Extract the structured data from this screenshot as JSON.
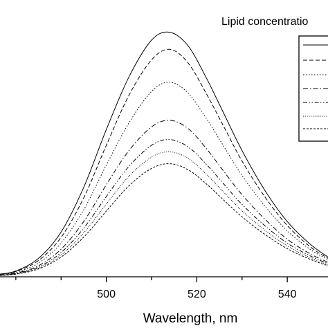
{
  "chart_data": {
    "type": "line",
    "xlabel": "Wavelength, nm",
    "ylabel": "",
    "xlim": [
      476.5,
      549
    ],
    "ylim": [
      0,
      1
    ],
    "x_ticks": [
      500,
      520,
      540
    ],
    "legend": {
      "title": "Lipid concentratio",
      "placement": "top-right",
      "entries": [
        "",
        "",
        "",
        "",
        "",
        "",
        ""
      ]
    },
    "grid": false,
    "series": [
      {
        "style": "solid",
        "x": [
          476.5,
          480,
          485,
          490,
          495,
          500,
          505,
          510,
          514,
          518,
          522,
          526,
          530,
          535,
          540,
          545,
          549
        ],
        "y": [
          0.01,
          0.022,
          0.07,
          0.17,
          0.34,
          0.56,
          0.76,
          0.9,
          0.93,
          0.88,
          0.76,
          0.62,
          0.48,
          0.33,
          0.21,
          0.125,
          0.075
        ]
      },
      {
        "style": "dashed",
        "x": [
          476.5,
          480,
          485,
          490,
          495,
          500,
          505,
          510,
          514,
          518,
          522,
          526,
          530,
          535,
          540,
          545,
          549
        ],
        "y": [
          0.01,
          0.02,
          0.062,
          0.15,
          0.3,
          0.5,
          0.69,
          0.825,
          0.865,
          0.815,
          0.7,
          0.57,
          0.44,
          0.305,
          0.195,
          0.115,
          0.07
        ]
      },
      {
        "style": "dotted",
        "x": [
          476.5,
          480,
          485,
          490,
          495,
          500,
          505,
          510,
          514,
          518,
          522,
          526,
          530,
          535,
          540,
          545,
          549
        ],
        "y": [
          0.008,
          0.017,
          0.052,
          0.128,
          0.255,
          0.425,
          0.585,
          0.705,
          0.74,
          0.7,
          0.605,
          0.495,
          0.385,
          0.27,
          0.175,
          0.105,
          0.065
        ]
      },
      {
        "style": "dashdot",
        "x": [
          476.5,
          480,
          485,
          490,
          495,
          500,
          505,
          510,
          514,
          518,
          522,
          526,
          530,
          535,
          540,
          545,
          549
        ],
        "y": [
          0.007,
          0.014,
          0.042,
          0.105,
          0.21,
          0.35,
          0.48,
          0.57,
          0.595,
          0.565,
          0.49,
          0.4,
          0.312,
          0.22,
          0.143,
          0.088,
          0.055
        ]
      },
      {
        "style": "dashdotdot",
        "x": [
          476.5,
          480,
          485,
          490,
          495,
          500,
          505,
          510,
          514,
          518,
          522,
          526,
          530,
          535,
          540,
          545,
          549
        ],
        "y": [
          0.006,
          0.012,
          0.037,
          0.092,
          0.185,
          0.305,
          0.42,
          0.5,
          0.522,
          0.495,
          0.43,
          0.352,
          0.275,
          0.195,
          0.128,
          0.08,
          0.05
        ]
      },
      {
        "style": "shortdot",
        "x": [
          476.5,
          480,
          485,
          490,
          495,
          500,
          505,
          510,
          514,
          518,
          522,
          526,
          530,
          535,
          540,
          545,
          549
        ],
        "y": [
          0.006,
          0.011,
          0.033,
          0.083,
          0.167,
          0.277,
          0.382,
          0.455,
          0.475,
          0.451,
          0.392,
          0.321,
          0.251,
          0.178,
          0.117,
          0.073,
          0.046
        ]
      },
      {
        "style": "shortdash",
        "x": [
          476.5,
          480,
          485,
          490,
          495,
          500,
          505,
          510,
          514,
          518,
          522,
          526,
          530,
          535,
          540,
          545,
          549
        ],
        "y": [
          0.005,
          0.01,
          0.03,
          0.075,
          0.151,
          0.25,
          0.346,
          0.412,
          0.43,
          0.408,
          0.355,
          0.291,
          0.228,
          0.162,
          0.107,
          0.067,
          0.042
        ]
      }
    ]
  }
}
